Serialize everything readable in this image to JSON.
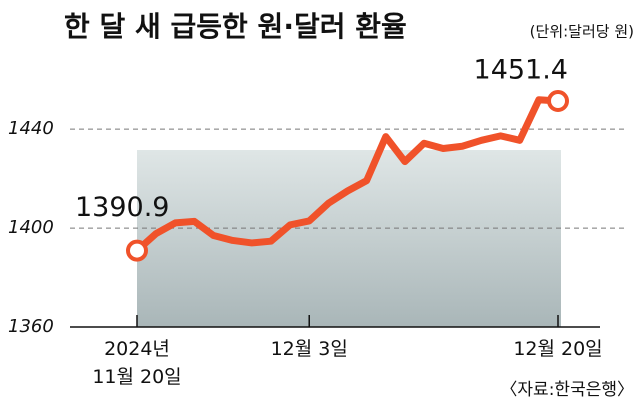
{
  "chart_data": {
    "type": "line",
    "title": "한 달 새 급등한 원·달러 환율",
    "subtitle": "(단위:달러당 원)",
    "source": "〈자료:한국은행〉",
    "categories": [
      "2024년 11월 20일",
      null,
      null,
      null,
      null,
      null,
      null,
      null,
      null,
      "12월 3일",
      null,
      null,
      null,
      null,
      null,
      null,
      null,
      null,
      null,
      null,
      null,
      null,
      "12월 20일"
    ],
    "values": [
      1390.9,
      1397.8,
      1402.1,
      1402.7,
      1397.0,
      1395.0,
      1394.0,
      1394.7,
      1401.3,
      1402.9,
      1410.0,
      1415.0,
      1419.2,
      1437.0,
      1426.9,
      1434.3,
      1432.2,
      1433.1,
      1435.5,
      1437.3,
      1435.5,
      1451.9,
      1451.4
    ],
    "color": "#f0522a",
    "ylim": [
      1360,
      1470
    ],
    "yticks": [
      1360,
      1400,
      1440
    ],
    "grid": true
  }
}
